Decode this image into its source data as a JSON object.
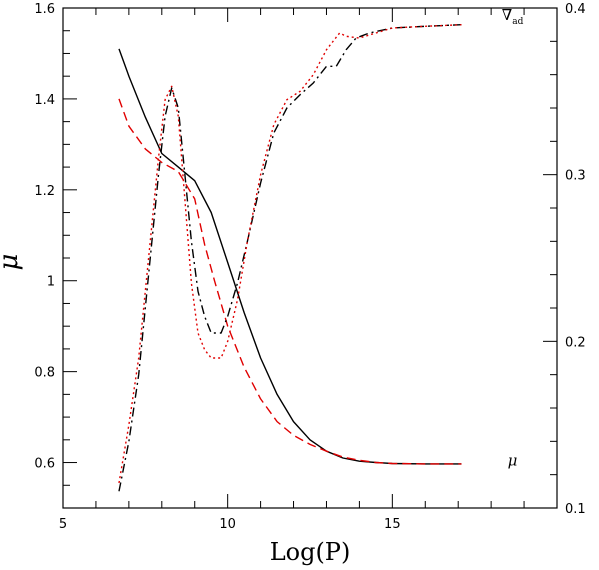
{
  "chart_data": {
    "type": "line",
    "xlabel": "Log(P)",
    "ylabel": "μ",
    "y2label": "",
    "xlim": [
      5,
      20
    ],
    "ylim": [
      0.5,
      1.6
    ],
    "y2lim": [
      0.1,
      0.4
    ],
    "x_ticks": [
      5,
      10,
      15
    ],
    "x_tick_labels": [
      "5",
      "10",
      "15"
    ],
    "y_ticks": [
      0.6,
      0.8,
      1.0,
      1.2,
      1.4,
      1.6
    ],
    "y_tick_labels": [
      "0.6",
      "0.8",
      "1",
      "1.2",
      "1.4",
      "1.6"
    ],
    "y2_ticks": [
      0.1,
      0.2,
      0.3,
      0.4
    ],
    "y2_tick_labels": [
      "0.1",
      "0.2",
      "0.3",
      "0.4"
    ],
    "annotations": [
      {
        "text": "∇",
        "sub": "ad",
        "x": 18.65,
        "y": 1.585,
        "axis": "left"
      },
      {
        "text": "μ",
        "sub": "",
        "x": 18.65,
        "y": 0.605,
        "axis": "left"
      }
    ],
    "series": [
      {
        "axis": "left",
        "color": "#000000",
        "dash": "",
        "x": [
          6.7,
          7.0,
          7.5,
          8.0,
          8.5,
          9.0,
          9.5,
          10.0,
          10.5,
          11.0,
          11.5,
          12.0,
          12.5,
          13.0,
          13.5,
          14.0,
          14.5,
          15.0,
          16.0,
          17.1
        ],
        "y": [
          1.51,
          1.45,
          1.36,
          1.28,
          1.25,
          1.22,
          1.15,
          1.04,
          0.93,
          0.83,
          0.75,
          0.69,
          0.65,
          0.625,
          0.61,
          0.603,
          0.6,
          0.598,
          0.597,
          0.597
        ]
      },
      {
        "axis": "left",
        "color": "#e00000",
        "dash": "9 5",
        "x": [
          6.7,
          7.0,
          7.5,
          8.0,
          8.5,
          9.0,
          9.3,
          9.6,
          10.0,
          10.5,
          11.0,
          11.5,
          12.0,
          12.5,
          13.0,
          13.5,
          14.0,
          14.5,
          15.0,
          16.0,
          17.1
        ],
        "y": [
          1.4,
          1.34,
          1.29,
          1.26,
          1.24,
          1.18,
          1.08,
          1.0,
          0.9,
          0.81,
          0.74,
          0.69,
          0.66,
          0.64,
          0.625,
          0.612,
          0.605,
          0.6,
          0.598,
          0.597,
          0.597
        ]
      },
      {
        "axis": "right",
        "color": "#000000",
        "dash": "9 4 2 4",
        "x": [
          6.7,
          7.0,
          7.3,
          7.6,
          7.9,
          8.1,
          8.3,
          8.5,
          8.7,
          8.9,
          9.1,
          9.3,
          9.5,
          9.8,
          10.0,
          10.3,
          10.6,
          11.0,
          11.4,
          11.8,
          12.2,
          12.6,
          13.0,
          13.3,
          13.6,
          13.9,
          14.3,
          15.0,
          16.0,
          17.1
        ],
        "y": [
          0.11,
          0.14,
          0.18,
          0.24,
          0.3,
          0.335,
          0.352,
          0.34,
          0.3,
          0.26,
          0.23,
          0.215,
          0.205,
          0.205,
          0.215,
          0.235,
          0.26,
          0.295,
          0.325,
          0.34,
          0.348,
          0.355,
          0.365,
          0.365,
          0.375,
          0.382,
          0.385,
          0.388,
          0.389,
          0.39
        ]
      },
      {
        "axis": "right",
        "color": "#e00000",
        "dash": "2 3",
        "x": [
          6.7,
          7.0,
          7.3,
          7.6,
          7.9,
          8.1,
          8.3,
          8.5,
          8.7,
          8.9,
          9.1,
          9.3,
          9.5,
          9.8,
          10.0,
          10.3,
          10.6,
          11.0,
          11.4,
          11.8,
          12.2,
          12.6,
          13.0,
          13.4,
          13.6,
          14.0,
          14.5,
          15.0,
          16.0,
          17.1
        ],
        "y": [
          0.115,
          0.15,
          0.19,
          0.25,
          0.31,
          0.345,
          0.353,
          0.335,
          0.285,
          0.235,
          0.205,
          0.195,
          0.19,
          0.19,
          0.2,
          0.225,
          0.26,
          0.3,
          0.33,
          0.345,
          0.35,
          0.36,
          0.375,
          0.385,
          0.383,
          0.382,
          0.385,
          0.388,
          0.389,
          0.39
        ]
      }
    ]
  }
}
